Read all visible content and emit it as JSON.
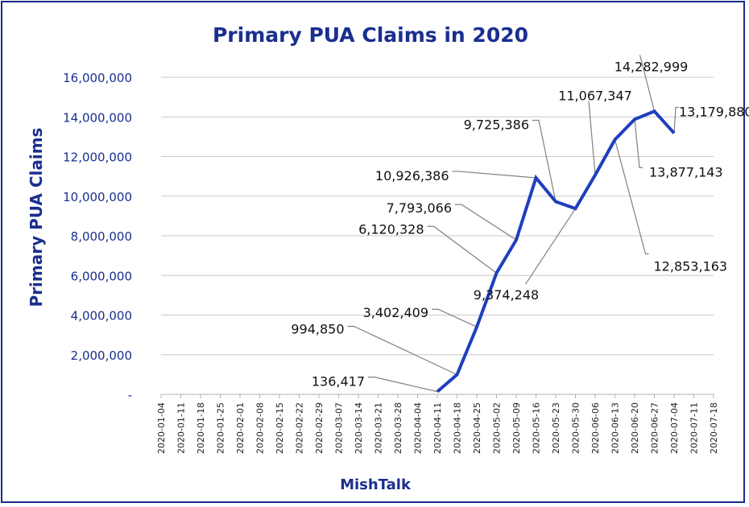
{
  "chart_data": {
    "type": "line",
    "title": "Primary PUA Claims in 2020",
    "xlabel": "MishTalk",
    "ylabel": "Primary  PUA  Claims",
    "ylim": [
      0,
      16000000
    ],
    "yticks": [
      0,
      2000000,
      4000000,
      6000000,
      8000000,
      10000000,
      12000000,
      14000000,
      16000000
    ],
    "ytick_labels": [
      "-",
      "2,000,000",
      "4,000,000",
      "6,000,000",
      "8,000,000",
      "10,000,000",
      "12,000,000",
      "14,000,000",
      "16,000,000"
    ],
    "categories": [
      "2020-01-04",
      "2020-01-11",
      "2020-01-18",
      "2020-01-25",
      "2020-02-01",
      "2020-02-08",
      "2020-02-15",
      "2020-02-22",
      "2020-02-29",
      "2020-03-07",
      "2020-03-14",
      "2020-03-21",
      "2020-03-28",
      "2020-04-04",
      "2020-04-11",
      "2020-04-18",
      "2020-04-25",
      "2020-05-02",
      "2020-05-09",
      "2020-05-16",
      "2020-05-23",
      "2020-05-30",
      "2020-06-06",
      "2020-06-13",
      "2020-06-20",
      "2020-06-27",
      "2020-07-04",
      "2020-07-11",
      "2020-07-18"
    ],
    "series": [
      {
        "color": "#1f3fbf",
        "points": [
          {
            "x": "2020-04-11",
            "y": 136417,
            "label": "136,417"
          },
          {
            "x": "2020-04-18",
            "y": 994850,
            "label": "994,850"
          },
          {
            "x": "2020-04-25",
            "y": 3402409,
            "label": "3,402,409"
          },
          {
            "x": "2020-05-02",
            "y": 6120328,
            "label": "6,120,328"
          },
          {
            "x": "2020-05-09",
            "y": 7793066,
            "label": "7,793,066"
          },
          {
            "x": "2020-05-16",
            "y": 10926386,
            "label": "10,926,386"
          },
          {
            "x": "2020-05-23",
            "y": 9725386,
            "label": "9,725,386"
          },
          {
            "x": "2020-05-30",
            "y": 9374248,
            "label": "9,374,248"
          },
          {
            "x": "2020-06-06",
            "y": 11067347,
            "label": "11,067,347"
          },
          {
            "x": "2020-06-13",
            "y": 12853163,
            "label": "12,853,163"
          },
          {
            "x": "2020-06-20",
            "y": 13877143,
            "label": "13,877,143"
          },
          {
            "x": "2020-06-27",
            "y": 14282999,
            "label": "14,282,999"
          },
          {
            "x": "2020-07-04",
            "y": 13179880,
            "label": "13,179,880"
          }
        ]
      }
    ],
    "grid": true,
    "legend": "none"
  }
}
